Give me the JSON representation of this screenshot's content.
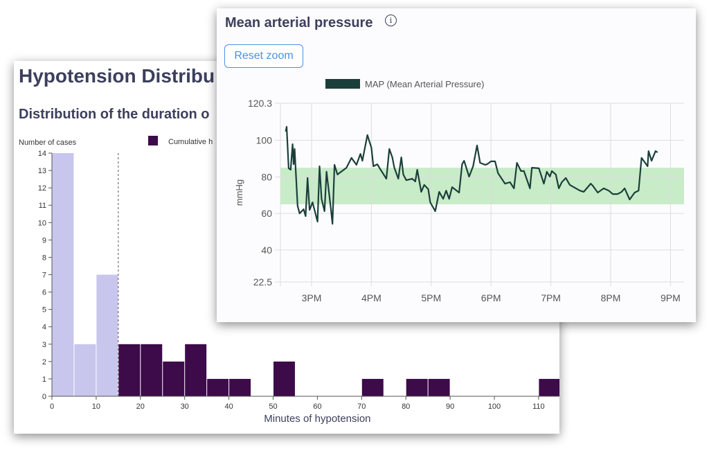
{
  "histogram_card": {
    "title": "Hypotension Distribu",
    "subtitle": "Distribution of the duration o"
  },
  "map_card": {
    "title": "Mean arterial pressure",
    "info_icon": "info-circle-icon",
    "reset_zoom_label": "Reset zoom"
  },
  "chart_data": [
    {
      "type": "bar",
      "ylabel": "Number of cases",
      "xlabel": "Minutes of hypotension",
      "legend": [
        {
          "label": "Cumulative h",
          "color": "#3d0a4a"
        }
      ],
      "bin_width": 5,
      "bins_start": [
        0,
        5,
        10,
        15,
        20,
        25,
        30,
        35,
        40,
        45,
        50,
        55,
        60,
        65,
        70,
        75,
        80,
        85,
        90,
        95,
        100,
        105,
        110
      ],
      "values": [
        14,
        3,
        7,
        3,
        3,
        2,
        3,
        1,
        1,
        0,
        2,
        0,
        0,
        0,
        1,
        0,
        1,
        1,
        0,
        0,
        0,
        0,
        1
      ],
      "threshold": 15,
      "colors": {
        "below_threshold": "#c8c6ec",
        "above_threshold": "#3d0a4a"
      },
      "xlim": [
        0,
        115
      ],
      "ylim": [
        0,
        14
      ],
      "xticks": [
        0,
        10,
        20,
        30,
        40,
        50,
        60,
        70,
        80,
        90,
        100,
        110
      ],
      "yticks": [
        0,
        1,
        2,
        3,
        4,
        5,
        6,
        7,
        8,
        9,
        10,
        11,
        12,
        13,
        14
      ]
    },
    {
      "type": "line",
      "ylabel": "mmHg",
      "legend": [
        {
          "label": "MAP (Mean Arterial Pressure)",
          "color": "#1a3f3a"
        }
      ],
      "ylim": [
        22.5,
        120.3
      ],
      "yticks": [
        "22.5",
        "40",
        "60",
        "80",
        "100",
        "120.3"
      ],
      "xlim": [
        "14:29",
        "21:15"
      ],
      "xticks": [
        {
          "t": "15:00",
          "label": "3PM"
        },
        {
          "t": "16:00",
          "label": "4PM"
        },
        {
          "t": "17:00",
          "label": "5PM"
        },
        {
          "t": "18:00",
          "label": "6PM"
        },
        {
          "t": "19:00",
          "label": "7PM"
        },
        {
          "t": "20:00",
          "label": "8PM"
        },
        {
          "t": "21:00",
          "label": "9PM"
        }
      ],
      "target_band": {
        "low": 65,
        "high": 85,
        "color": "#c8ebc8"
      },
      "grid": true,
      "series": [
        {
          "name": "MAP (Mean Arterial Pressure)",
          "color": "#1a3f3a",
          "points": [
            [
              "14:34",
              104.8
            ],
            [
              "14:35",
              107.4
            ],
            [
              "14:37",
              84.7
            ],
            [
              "14:39",
              83.9
            ],
            [
              "14:41",
              97.9
            ],
            [
              "14:42",
              86.9
            ],
            [
              "14:43",
              95.3
            ],
            [
              "14:46",
              64.2
            ],
            [
              "14:48",
              60.0
            ],
            [
              "14:52",
              62.3
            ],
            [
              "14:54",
              58.5
            ],
            [
              "14:56",
              79.4
            ],
            [
              "14:58",
              61.9
            ],
            [
              "15:01",
              66.1
            ],
            [
              "15:06",
              55.5
            ],
            [
              "15:08",
              85.8
            ],
            [
              "15:10",
              68.0
            ],
            [
              "15:13",
              61.2
            ],
            [
              "15:15",
              82.8
            ],
            [
              "15:19",
              64.2
            ],
            [
              "15:21",
              54.3
            ],
            [
              "15:23",
              86.6
            ],
            [
              "15:26",
              81.3
            ],
            [
              "15:35",
              85.0
            ],
            [
              "15:40",
              90.4
            ],
            [
              "15:45",
              86.6
            ],
            [
              "15:49",
              92.6
            ],
            [
              "15:51",
              88.8
            ],
            [
              "15:56",
              102.9
            ],
            [
              "16:00",
              96.0
            ],
            [
              "16:02",
              85.8
            ],
            [
              "16:06",
              86.9
            ],
            [
              "16:08",
              85.0
            ],
            [
              "16:15",
              79.0
            ],
            [
              "16:18",
              95.3
            ],
            [
              "16:21",
              90.7
            ],
            [
              "16:23",
              85.0
            ],
            [
              "16:27",
              79.0
            ],
            [
              "16:30",
              90.7
            ],
            [
              "16:32",
              81.3
            ],
            [
              "16:35",
              78.2
            ],
            [
              "16:41",
              79.0
            ],
            [
              "16:44",
              77.5
            ],
            [
              "16:46",
              83.9
            ],
            [
              "16:50",
              71.8
            ],
            [
              "16:53",
              75.6
            ],
            [
              "16:57",
              73.3
            ],
            [
              "16:59",
              66.1
            ],
            [
              "17:04",
              61.2
            ],
            [
              "17:08",
              71.8
            ],
            [
              "17:12",
              68.0
            ],
            [
              "17:15",
              72.5
            ],
            [
              "17:18",
              68.0
            ],
            [
              "17:21",
              74.4
            ],
            [
              "17:28",
              71.4
            ],
            [
              "17:31",
              86.9
            ],
            [
              "17:33",
              88.8
            ],
            [
              "17:38",
              80.1
            ],
            [
              "17:42",
              85.8
            ],
            [
              "17:46",
              97.2
            ],
            [
              "17:49",
              87.7
            ],
            [
              "17:54",
              86.6
            ],
            [
              "17:56",
              86.9
            ],
            [
              "18:00",
              88.5
            ],
            [
              "18:04",
              88.5
            ],
            [
              "18:07",
              82.0
            ],
            [
              "18:14",
              76.3
            ],
            [
              "18:19",
              77.1
            ],
            [
              "18:23",
              73.7
            ],
            [
              "18:26",
              87.7
            ],
            [
              "18:30",
              83.2
            ],
            [
              "18:33",
              83.2
            ],
            [
              "18:39",
              73.7
            ],
            [
              "18:41",
              85.0
            ],
            [
              "18:48",
              84.7
            ],
            [
              "18:53",
              76.3
            ],
            [
              "18:56",
              82.8
            ],
            [
              "18:59",
              80.1
            ],
            [
              "19:01",
              83.2
            ],
            [
              "19:05",
              81.3
            ],
            [
              "19:08",
              73.7
            ],
            [
              "19:11",
              77.1
            ],
            [
              "19:15",
              79.4
            ],
            [
              "19:19",
              75.6
            ],
            [
              "19:29",
              72.5
            ],
            [
              "19:33",
              71.8
            ],
            [
              "19:40",
              76.3
            ],
            [
              "19:42",
              75.2
            ],
            [
              "19:47",
              71.4
            ],
            [
              "19:53",
              73.7
            ],
            [
              "19:58",
              72.5
            ],
            [
              "20:02",
              70.6
            ],
            [
              "20:07",
              70.6
            ],
            [
              "20:11",
              71.8
            ],
            [
              "20:14",
              73.7
            ],
            [
              "20:19",
              67.6
            ],
            [
              "20:24",
              71.4
            ],
            [
              "20:28",
              72.5
            ],
            [
              "20:31",
              90.4
            ],
            [
              "20:37",
              85.8
            ],
            [
              "20:38",
              94.1
            ],
            [
              "20:41",
              88.8
            ],
            [
              "20:45",
              94.1
            ],
            [
              "20:47",
              93.4
            ]
          ]
        }
      ]
    }
  ]
}
